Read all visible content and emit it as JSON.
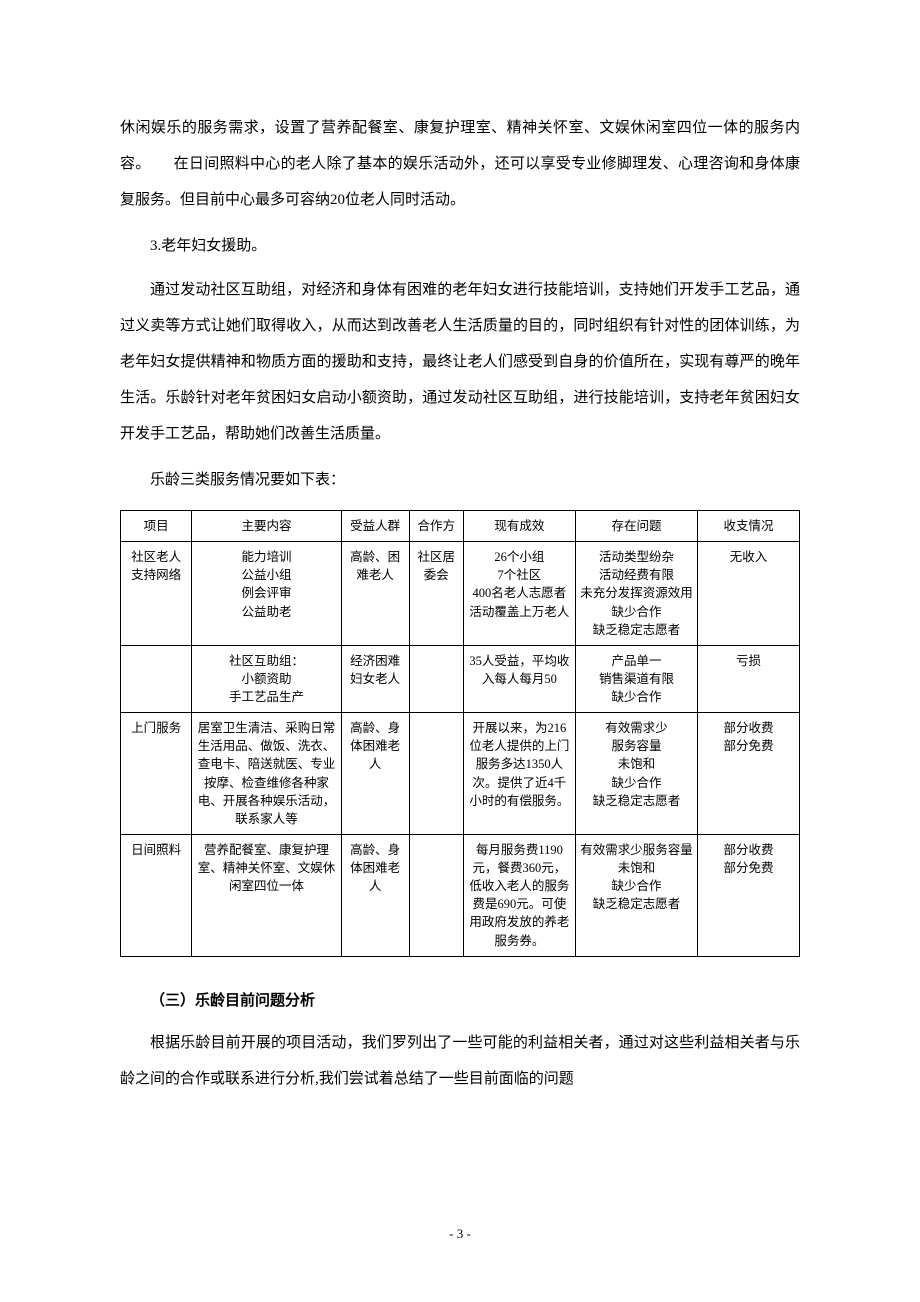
{
  "p1": "休闲娱乐的服务需求，设置了营养配餐室、康复护理室、精神关怀室、文娱休闲室四位一体的服务内容。　　在日间照料中心的老人除了基本的娱乐活动外，还可以享受专业修脚理发、心理咨询和身体康复服务。但目前中心最多可容纳20位老人同时活动。",
  "p2": "3.老年妇女援助。",
  "p3": "通过发动社区互助组，对经济和身体有困难的老年妇女进行技能培训，支持她们开发手工艺品，通过义卖等方式让她们取得收入，从而达到改善老人生活质量的目的，同时组织有针对性的团体训练，为老年妇女提供精神和物质方面的援助和支持，最终让老人们感受到自身的价值所在，实现有尊严的晚年生活。乐龄针对老年贫困妇女启动小额资助，通过发动社区互助组，进行技能培训，支持老年贫困妇女开发手工艺品，帮助她们改善生活质量。",
  "caption": "乐龄三类服务情况要如下表：",
  "headers": {
    "c0": "项目",
    "c1": "主要内容",
    "c2": "受益人群",
    "c3": "合作方",
    "c4": "现有成效",
    "c5": "存在问题",
    "c6": "收支情况"
  },
  "rows": {
    "r0": {
      "c0": "社区老人支持网络",
      "c1": "能力培训\n公益小组\n例会评审\n公益助老",
      "c2": "高龄、困难老人",
      "c3": "社区居委会",
      "c4": "26个小组\n7个社区\n400名老人志愿者\n活动覆盖上万老人",
      "c5": "活动类型纷杂\n活动经费有限\n未充分发挥资源效用\n缺少合作\n缺乏稳定志愿者",
      "c6": "无收入"
    },
    "r1": {
      "c0": "",
      "c1": "社区互助组：\n小额资助\n手工艺品生产",
      "c2": "经济困难妇女老人",
      "c3": "",
      "c4": "35人受益，平均收入每人每月50",
      "c5": "产品单一\n销售渠道有限\n缺少合作",
      "c6": "亏损"
    },
    "r2": {
      "c0": "上门服务",
      "c1": "居室卫生清洁、采购日常生活用品、做饭、洗衣、查电卡、陪送就医、专业按摩、检查维修各种家电、开展各种娱乐活动，联系家人等",
      "c2": "高龄、身体困难老人",
      "c3": "",
      "c4": "开展以来，为216位老人提供的上门服务多达1350人次。提供了近4千小时的有偿服务。",
      "c5": "有效需求少\n服务容量\n未饱和\n缺少合作\n缺乏稳定志愿者",
      "c6": "部分收费\n部分免费"
    },
    "r3": {
      "c0": "日间照料",
      "c1": "营养配餐室、康复护理室、精神关怀室、文娱休闲室四位一体",
      "c2": "高龄、身体困难老人",
      "c3": "",
      "c4": "每月服务费1190元，餐费360元，低收入老人的服务费是690元。可使用政府发放的养老服务券。",
      "c5": "有效需求少服务容量\n未饱和\n缺少合作\n缺乏稳定志愿者",
      "c6": "部分收费\n部分免费"
    }
  },
  "section3": "（三）乐龄目前问题分析",
  "p4": "根据乐龄目前开展的项目活动，我们罗列出了一些可能的利益相关者，通过对这些利益相关者与乐龄之间的合作或联系进行分析,我们尝试着总结了一些目前面临的问题",
  "pageNumber": "- 3 -"
}
